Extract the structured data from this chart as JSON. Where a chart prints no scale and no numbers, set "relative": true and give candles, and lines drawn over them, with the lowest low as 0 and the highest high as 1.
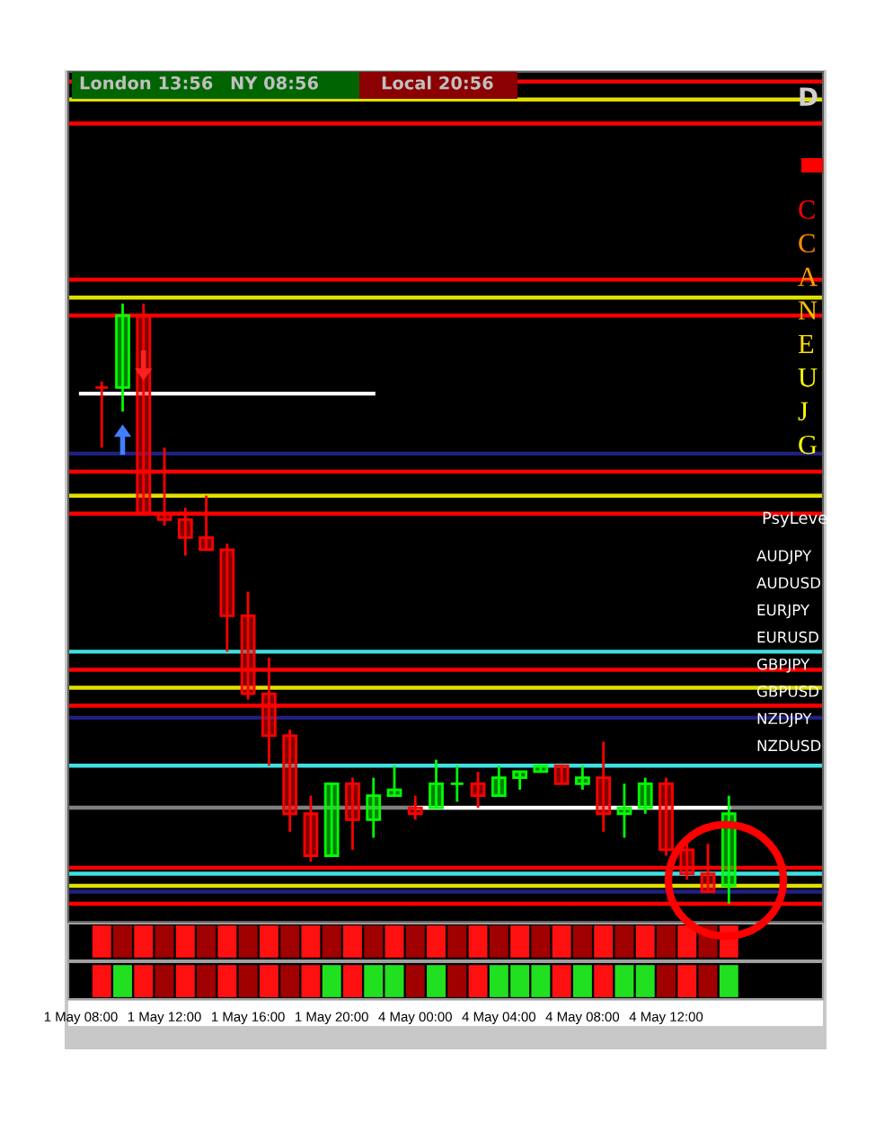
{
  "chart_data": {
    "type": "candlestick",
    "relative": true,
    "tick_labels": "x",
    "grid": false,
    "categories": [
      "1 May 08:00",
      null,
      null,
      null,
      "1 May 12:00",
      null,
      null,
      null,
      "1 May 16:00",
      null,
      null,
      null,
      "1 May 20:00",
      null,
      null,
      null,
      "4 May 00:00",
      null,
      null,
      null,
      "4 May 04:00",
      null,
      null,
      null,
      "4 May 08:00",
      null,
      null,
      null,
      "4 May 12:00",
      null,
      null,
      null
    ],
    "ohlc": [
      null,
      [
        0.86,
        0.87,
        0.76,
        0.86
      ],
      [
        0.86,
        1.0,
        0.82,
        0.98
      ],
      [
        0.98,
        1.0,
        0.65,
        0.65
      ],
      [
        0.65,
        0.76,
        0.63,
        0.64
      ],
      [
        0.64,
        0.66,
        0.58,
        0.61
      ],
      [
        0.61,
        0.68,
        0.59,
        0.59
      ],
      [
        0.59,
        0.6,
        0.42,
        0.48
      ],
      [
        0.48,
        0.52,
        0.34,
        0.35
      ],
      [
        0.35,
        0.41,
        0.23,
        0.28
      ],
      [
        0.28,
        0.29,
        0.12,
        0.15
      ],
      [
        0.15,
        0.18,
        0.07,
        0.08
      ],
      [
        0.08,
        0.2,
        0.08,
        0.2
      ],
      [
        0.2,
        0.21,
        0.09,
        0.14
      ],
      [
        0.14,
        0.21,
        0.11,
        0.18
      ],
      [
        0.18,
        0.23,
        0.18,
        0.19
      ],
      [
        0.16,
        0.18,
        0.14,
        0.15
      ],
      [
        0.16,
        0.24,
        0.16,
        0.2
      ],
      [
        0.2,
        0.23,
        0.17,
        0.2
      ],
      [
        0.2,
        0.22,
        0.16,
        0.18
      ],
      [
        0.18,
        0.23,
        0.18,
        0.21
      ],
      [
        0.21,
        0.22,
        0.19,
        0.22
      ],
      [
        0.22,
        0.23,
        0.22,
        0.23
      ],
      [
        0.23,
        0.23,
        0.2,
        0.2
      ],
      [
        0.2,
        0.23,
        0.19,
        0.21
      ],
      [
        0.21,
        0.27,
        0.12,
        0.15
      ],
      [
        0.15,
        0.2,
        0.11,
        0.16
      ],
      [
        0.16,
        0.21,
        0.15,
        0.2
      ],
      [
        0.2,
        0.21,
        0.08,
        0.09
      ],
      [
        0.09,
        0.11,
        0.04,
        0.05
      ],
      [
        0.05,
        0.1,
        0.02,
        0.02
      ],
      [
        0.03,
        0.18,
        0.0,
        0.15
      ]
    ],
    "colors": [
      null,
      "#ff0000",
      "#00ff00",
      "#ff0000",
      "#ff0000",
      "#ff0000",
      "#ff0000",
      "#ff0000",
      "#ff0000",
      "#ff0000",
      "#ff0000",
      "#ff0000",
      "#00ff00",
      "#ff0000",
      "#00ff00",
      "#00ff00",
      "#ff0000",
      "#00ff00",
      "#00ff00",
      "#ff0000",
      "#00ff00",
      "#00ff00",
      "#00ff00",
      "#ff0000",
      "#00ff00",
      "#ff0000",
      "#00ff00",
      "#00ff00",
      "#ff0000",
      "#ff0000",
      "#ff0000",
      "#00ff00"
    ],
    "series": [
      {
        "type": "line",
        "color": "#ffffff",
        "values": [
          0.85,
          0.85,
          0.85,
          0.85,
          0.85,
          0.85,
          0.85,
          0.85,
          0.85,
          0.85,
          0.85,
          0.85,
          0.85,
          0.85,
          0.85,
          null,
          null,
          null,
          null,
          null,
          null,
          null,
          null,
          null,
          null,
          null,
          null,
          null,
          null,
          null,
          null,
          null
        ]
      },
      {
        "type": "line",
        "color": "#ffffff",
        "values": [
          null,
          null,
          null,
          null,
          null,
          null,
          null,
          null,
          null,
          null,
          null,
          null,
          null,
          null,
          null,
          null,
          0.16,
          0.16,
          0.16,
          0.16,
          0.16,
          0.16,
          0.16,
          0.16,
          0.16,
          0.16,
          0.16,
          0.16,
          0.16,
          0.16,
          0.16,
          0.16
        ]
      }
    ],
    "ref_lines": [
      {
        "axis": "y",
        "value": 1.37,
        "color": "#ff0000"
      },
      {
        "axis": "y",
        "value": 1.34,
        "color": "#e0e000"
      },
      {
        "axis": "y",
        "value": 1.3,
        "color": "#ff0000"
      },
      {
        "axis": "y",
        "value": 1.04,
        "color": "#ff0000"
      },
      {
        "axis": "y",
        "value": 1.01,
        "color": "#e0e000"
      },
      {
        "axis": "y",
        "value": 0.98,
        "color": "#ff0000"
      },
      {
        "axis": "y",
        "value": 0.75,
        "color": "#202080"
      },
      {
        "axis": "y",
        "value": 0.72,
        "color": "#ff0000"
      },
      {
        "axis": "y",
        "value": 0.68,
        "color": "#e0e000"
      },
      {
        "axis": "y",
        "value": 0.65,
        "color": "#ff0000"
      },
      {
        "axis": "y",
        "value": 0.42,
        "color": "#40e0e0"
      },
      {
        "axis": "y",
        "value": 0.39,
        "color": "#ff0000"
      },
      {
        "axis": "y",
        "value": 0.36,
        "color": "#e0e000"
      },
      {
        "axis": "y",
        "value": 0.33,
        "color": "#ff0000"
      },
      {
        "axis": "y",
        "value": 0.31,
        "color": "#202080"
      },
      {
        "axis": "y",
        "value": 0.23,
        "color": "#40e0e0"
      },
      {
        "axis": "y",
        "value": 0.16,
        "color": "#808080"
      },
      {
        "axis": "y",
        "value": 0.06,
        "color": "#ff0000"
      },
      {
        "axis": "y",
        "value": 0.05,
        "color": "#40e0e0"
      },
      {
        "axis": "y",
        "value": 0.03,
        "color": "#e0e000"
      },
      {
        "axis": "y",
        "value": 0.02,
        "color": "#202080"
      },
      {
        "axis": "y",
        "value": 0.0,
        "color": "#ff0000"
      }
    ],
    "annotations": [
      "London 13:56",
      "NY 08:56",
      "Local 20:56",
      "D",
      "C",
      "C",
      "A",
      "N",
      "E",
      "U",
      "J",
      "G",
      "PsyLeve",
      "AUDJPY",
      "AUDUSD",
      "EURJPY",
      "EURUSD",
      "GBPJPY",
      "GBPUSD",
      "NZDJPY",
      "NZDUSD"
    ]
  }
}
